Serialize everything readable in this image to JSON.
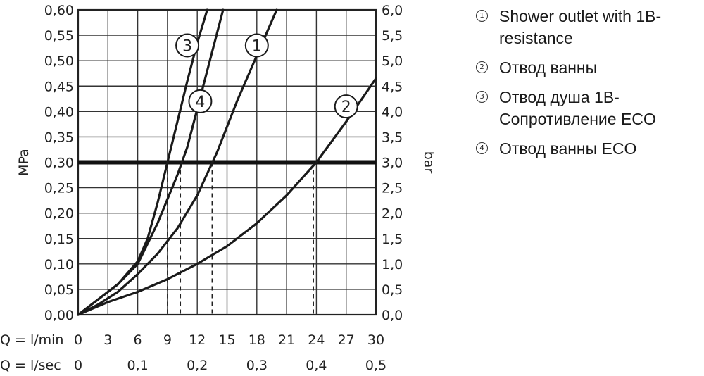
{
  "chart_data": {
    "type": "line",
    "title": "",
    "ylabel_left": "MPa",
    "ylabel_right": "bar",
    "x_primary_label": "Q = l/min",
    "x_secondary_label": "Q = l/sec",
    "xlim": [
      0,
      30
    ],
    "ylim_left": [
      0,
      0.6
    ],
    "ylim_right": [
      0,
      6
    ],
    "grid": true,
    "legend_placement": "right",
    "x_ticks": [
      "0",
      "3",
      "6",
      "9",
      "12",
      "15",
      "18",
      "21",
      "24",
      "27",
      "30"
    ],
    "x_secondary_ticks": [
      {
        "pos": 0,
        "label": "0"
      },
      {
        "pos": 6,
        "label": "0,1"
      },
      {
        "pos": 12,
        "label": "0,2"
      },
      {
        "pos": 18,
        "label": "0,3"
      },
      {
        "pos": 24,
        "label": "0,4"
      },
      {
        "pos": 30,
        "label": "0,5"
      }
    ],
    "y_ticks_left": [
      "0,00",
      "0,05",
      "0,10",
      "0,15",
      "0,20",
      "0,25",
      "0,30",
      "0,35",
      "0,40",
      "0,45",
      "0,50",
      "0,55",
      "0,60"
    ],
    "y_ticks_right": [
      "0,0",
      "0,5",
      "1,0",
      "1,5",
      "2,0",
      "2,5",
      "3,0",
      "3,5",
      "4,0",
      "4,5",
      "5,0",
      "5,5",
      "6,0"
    ],
    "reference_line": {
      "y": 0.3
    },
    "series": [
      {
        "name": "1",
        "x": [
          0,
          2,
          4,
          6,
          8,
          10,
          12,
          14,
          16,
          18,
          20
        ],
        "y": [
          0,
          0.02,
          0.045,
          0.08,
          0.12,
          0.17,
          0.235,
          0.32,
          0.42,
          0.51,
          0.6
        ],
        "label_at": [
          18,
          0.53
        ]
      },
      {
        "name": "2",
        "x": [
          0,
          3,
          6,
          9,
          12,
          15,
          18,
          21,
          24,
          27,
          30
        ],
        "y": [
          0,
          0.025,
          0.045,
          0.07,
          0.1,
          0.135,
          0.18,
          0.235,
          0.3,
          0.38,
          0.465
        ],
        "label_at": [
          27,
          0.41
        ]
      },
      {
        "name": "3",
        "x": [
          0,
          2,
          4,
          6,
          7,
          8,
          9,
          10,
          11,
          12,
          13
        ],
        "y": [
          0,
          0.03,
          0.06,
          0.105,
          0.15,
          0.22,
          0.3,
          0.38,
          0.46,
          0.535,
          0.6
        ],
        "label_at": [
          11,
          0.53
        ]
      },
      {
        "name": "4",
        "x": [
          0,
          2,
          4,
          6,
          8,
          10,
          11,
          12,
          13,
          14.6
        ],
        "y": [
          0,
          0.03,
          0.06,
          0.1,
          0.18,
          0.275,
          0.33,
          0.405,
          0.48,
          0.6
        ],
        "label_at": [
          12.3,
          0.42
        ]
      }
    ],
    "dashed_markers": [
      9,
      10.3,
      13.5,
      23.7
    ]
  },
  "legend": [
    {
      "num": "1",
      "text": "Shower outlet with 1B-",
      "text2": "resistance"
    },
    {
      "num": "2",
      "text": "Отвод ванны",
      "text2": ""
    },
    {
      "num": "3",
      "text": "Отвод душа 1В-",
      "text2": "Сопротивление  ECO"
    },
    {
      "num": "4",
      "text": "Отвод ванны ECO",
      "text2": ""
    }
  ]
}
